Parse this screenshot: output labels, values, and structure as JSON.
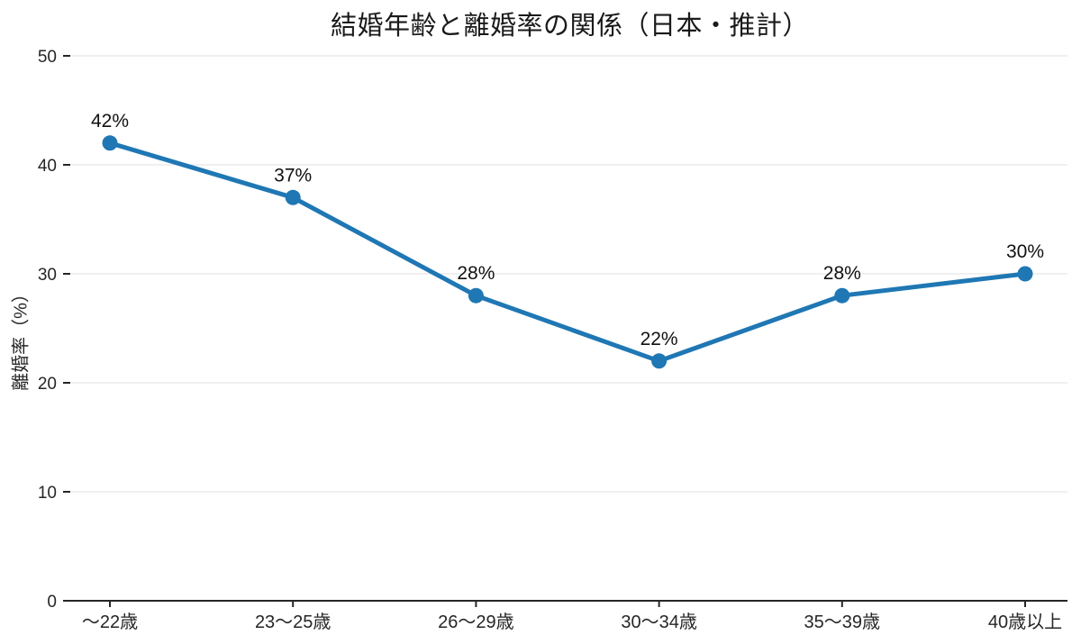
{
  "page": {
    "background": "#ffffff"
  },
  "chart_data": {
    "type": "line",
    "title": "結婚年齢と離婚率の関係（日本・推計）",
    "ylabel": "離婚率（%）",
    "xlabel": "",
    "categories": [
      "〜22歳",
      "23〜25歳",
      "26〜29歳",
      "30〜34歳",
      "35〜39歳",
      "40歳以上"
    ],
    "values": [
      42,
      37,
      28,
      22,
      28,
      30
    ],
    "point_labels": [
      "42%",
      "37%",
      "28%",
      "22%",
      "28%",
      "30%"
    ],
    "ylim": [
      0,
      50
    ],
    "yticks": [
      0,
      10,
      20,
      30,
      40,
      50
    ],
    "grid": true,
    "legend": false,
    "colors": {
      "line": "#1f77b4",
      "marker": "#1f77b4",
      "grid": "#e8e8e8",
      "axis": "#262626",
      "text": "#262626",
      "value_label": "#111111",
      "title": "#1a1a1a"
    }
  }
}
